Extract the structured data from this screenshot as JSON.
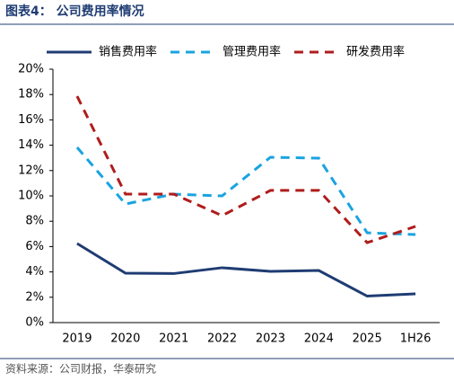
{
  "chart_data": {
    "type": "line",
    "title": "图表4：  公司费用率情况",
    "source": "资料来源：公司财报，华泰研究",
    "categories": [
      "2019",
      "2020",
      "2021",
      "2022",
      "2023",
      "2024",
      "2025",
      "1H26"
    ],
    "series": [
      {
        "name": "销售费用率",
        "color": "#1f3c73",
        "dash": false,
        "values": [
          6.24,
          3.9,
          3.87,
          4.33,
          4.04,
          4.11,
          2.09,
          2.27
        ]
      },
      {
        "name": "管理费用率",
        "color": "#1aa3e0",
        "dash": true,
        "values": [
          13.83,
          9.36,
          10.14,
          10.0,
          13.05,
          12.98,
          7.09,
          6.95
        ]
      },
      {
        "name": "研发费用率",
        "color": "#b01c1c",
        "dash": true,
        "values": [
          17.87,
          10.14,
          10.14,
          8.44,
          10.43,
          10.43,
          6.31,
          7.59
        ]
      }
    ],
    "ylim": [
      0,
      20
    ],
    "yticks": [
      {
        "value": 0,
        "label": "0%"
      },
      {
        "value": 2,
        "label": "2%"
      },
      {
        "value": 4,
        "label": "4%"
      },
      {
        "value": 6,
        "label": "6%"
      },
      {
        "value": 8,
        "label": "8%"
      },
      {
        "value": 10,
        "label": "10%"
      },
      {
        "value": 12,
        "label": "12%"
      },
      {
        "value": 14,
        "label": "14%"
      },
      {
        "value": 16,
        "label": "16%"
      },
      {
        "value": 18,
        "label": "18%"
      },
      {
        "value": 20,
        "label": "20%"
      }
    ],
    "grid": false
  }
}
